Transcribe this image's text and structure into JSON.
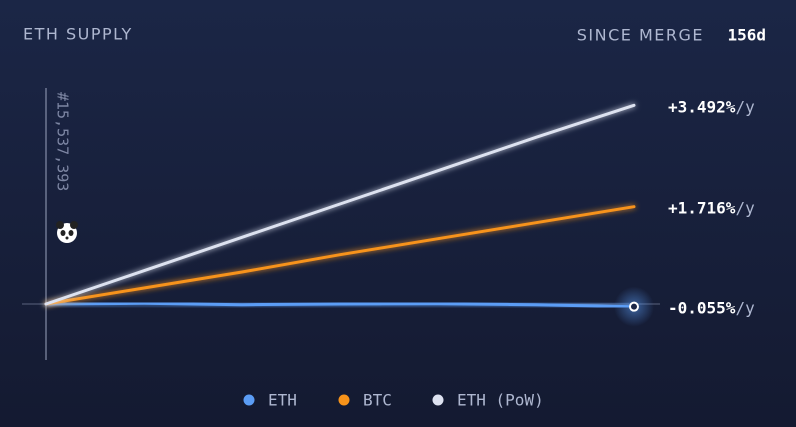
{
  "chart_data": {
    "type": "line",
    "title": "ETH SUPPLY",
    "period_label": "SINCE MERGE",
    "period_value": "156d",
    "annotation": "#15,537,393",
    "x": [
      0,
      26,
      52,
      78,
      104,
      130,
      156
    ],
    "xlim": [
      0,
      156
    ],
    "ylim": [
      -0.42,
      1.62
    ],
    "series": [
      {
        "name": "ETH",
        "color": "#5b9df5",
        "values": [
          0,
          0.005,
          -0.005,
          0,
          0.002,
          -0.005,
          -0.02
        ],
        "rate": "-0.055%",
        "unit": "/y"
      },
      {
        "name": "BTC",
        "color": "#f7931a",
        "values": [
          0,
          0.12,
          0.24,
          0.37,
          0.49,
          0.61,
          0.73
        ],
        "rate": "+1.716%",
        "unit": "/y"
      },
      {
        "name": "ETH (PoW)",
        "color": "#dde2f0",
        "values": [
          0,
          0.25,
          0.5,
          0.75,
          1.0,
          1.25,
          1.49
        ],
        "rate": "+3.492%",
        "unit": "/y"
      }
    ]
  }
}
